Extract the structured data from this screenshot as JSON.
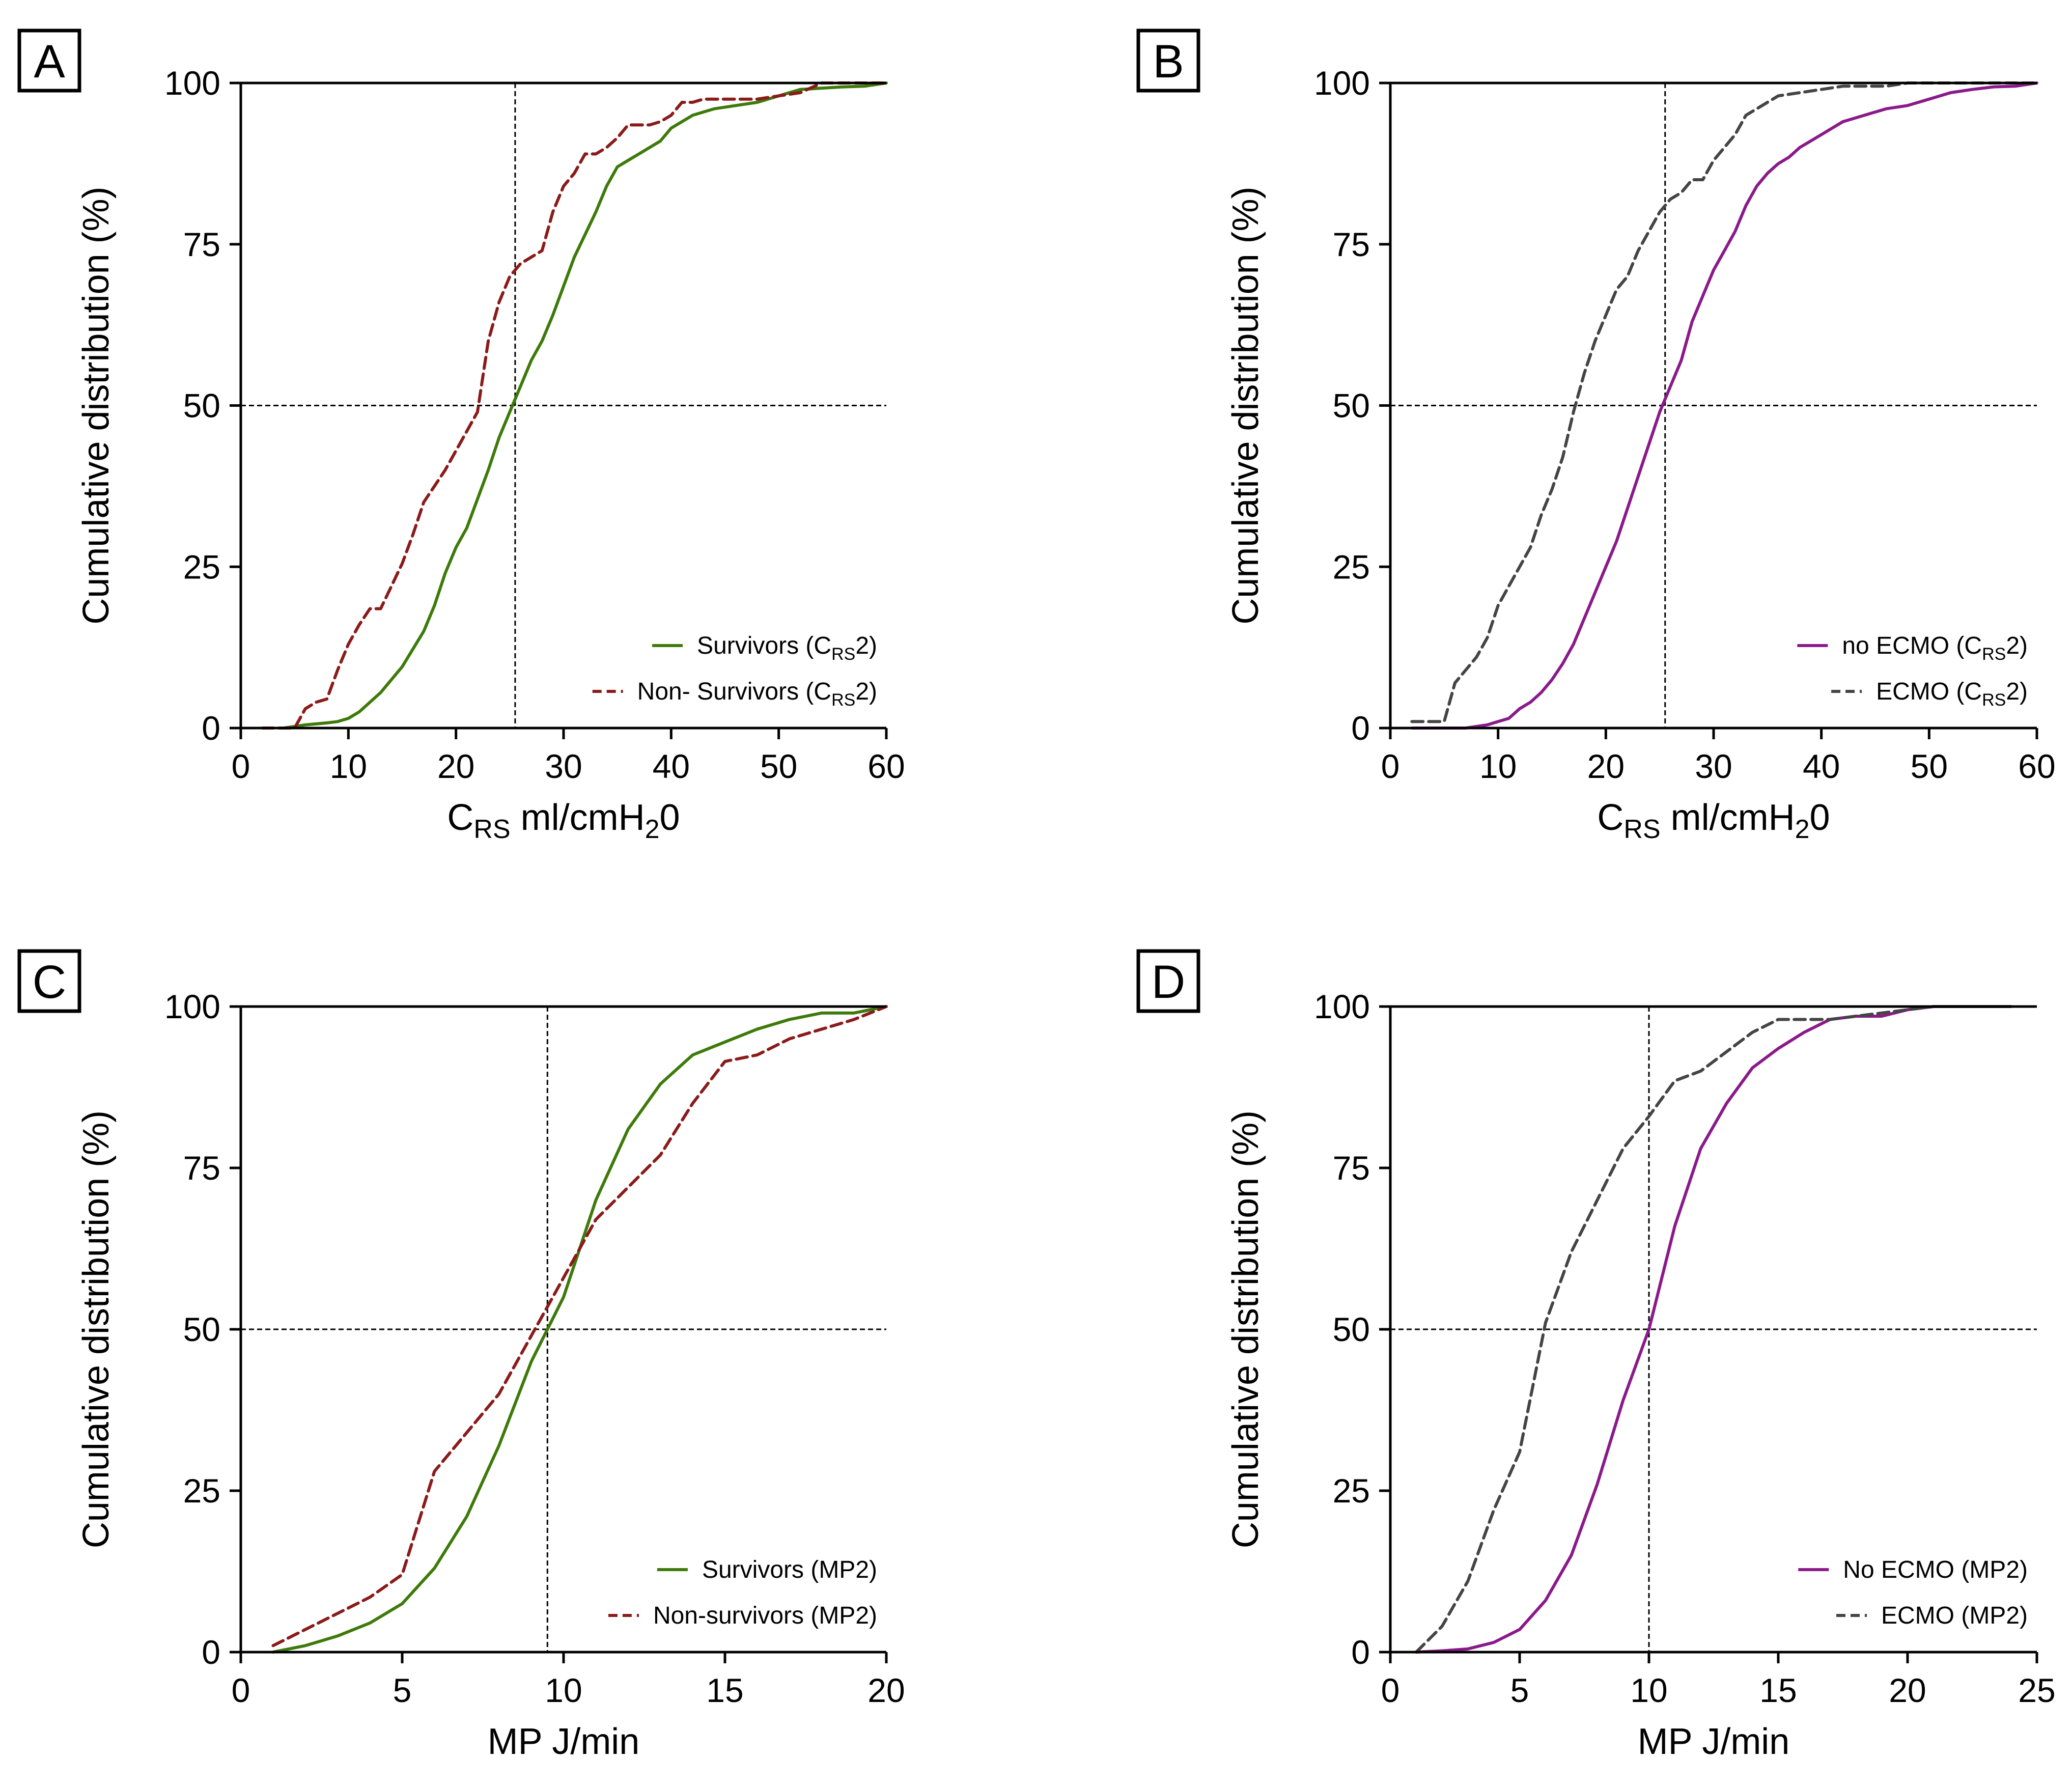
{
  "chart_data": [
    {
      "type": "line",
      "panel_label": "A",
      "xlabel_main": "C",
      "xlabel_sub": "RS",
      "xlabel_rest": " ml/cmH",
      "xlabel_sub2": "2",
      "xlabel_end": "0",
      "ylabel": "Cumulative distribution (%)",
      "xlim": [
        0,
        60
      ],
      "ylim": [
        0,
        100
      ],
      "xticks": [
        0,
        10,
        20,
        30,
        40,
        50,
        60
      ],
      "yticks": [
        0,
        25,
        50,
        75,
        100
      ],
      "ref_x": 25.5,
      "ref_y": 50,
      "legend_position": "bottom-right",
      "series": [
        {
          "name": "Survivors",
          "label_main": "Survivors (C",
          "label_sub": "RS",
          "label_end": "2)",
          "color": "#3d7a0a",
          "dash": "solid",
          "x": [
            4,
            6,
            8,
            9,
            10,
            11,
            13,
            15,
            17,
            18,
            19,
            20,
            21,
            23,
            24,
            25,
            26,
            27,
            28,
            29,
            31,
            33,
            34,
            35,
            36,
            37,
            38,
            39,
            40,
            42,
            44,
            46,
            48,
            50,
            52,
            54,
            56,
            58,
            60
          ],
          "y": [
            0,
            0.5,
            0.8,
            1,
            1.5,
            2.5,
            5.5,
            9.5,
            15,
            19,
            24,
            28,
            31,
            40,
            45,
            49,
            53,
            57,
            60,
            64,
            73,
            80,
            84,
            87,
            88,
            89,
            90,
            91,
            93,
            95,
            96,
            96.5,
            97,
            98,
            99,
            99.2,
            99.4,
            99.5,
            100
          ]
        },
        {
          "name": "Non-Survivors",
          "label_main": "Non- Survivors (C",
          "label_sub": "RS",
          "label_end": "2)",
          "color": "#8b1a1a",
          "dash": "dashed",
          "x": [
            2,
            5,
            6,
            7,
            8,
            9,
            10,
            11,
            12,
            13,
            14,
            15,
            16,
            17,
            18,
            19,
            20,
            21,
            22,
            23,
            24,
            25,
            26,
            27,
            28,
            29,
            30,
            31,
            32,
            33,
            34,
            35,
            36,
            37,
            38,
            39,
            40,
            41,
            42,
            43,
            44,
            45,
            46,
            48,
            50,
            52,
            54,
            56,
            60
          ],
          "y": [
            0,
            0,
            3,
            4,
            4.5,
            9,
            13,
            16,
            18.5,
            18.5,
            22,
            25.5,
            30,
            35,
            37.5,
            40,
            43,
            46,
            49,
            60,
            66,
            70,
            72,
            73,
            74,
            80,
            84,
            86,
            89,
            89,
            90,
            91.5,
            93.5,
            93.5,
            93.5,
            94,
            95,
            97,
            97,
            97.5,
            97.5,
            97.5,
            97.5,
            97.5,
            98,
            98.5,
            100,
            100,
            100
          ]
        }
      ]
    },
    {
      "type": "line",
      "panel_label": "B",
      "xlabel_main": "C",
      "xlabel_sub": "RS",
      "xlabel_rest": " ml/cmH",
      "xlabel_sub2": "2",
      "xlabel_end": "0",
      "ylabel": "Cumulative distribution (%)",
      "xlim": [
        0,
        60
      ],
      "ylim": [
        0,
        100
      ],
      "xticks": [
        0,
        10,
        20,
        30,
        40,
        50,
        60
      ],
      "yticks": [
        0,
        25,
        50,
        75,
        100
      ],
      "ref_x": 25.5,
      "ref_y": 50,
      "legend_position": "bottom-right",
      "series": [
        {
          "name": "no ECMO",
          "label_main": "no ECMO (C",
          "label_sub": "RS",
          "label_end": "2)",
          "color": "#8a1a8a",
          "dash": "solid",
          "x": [
            2,
            7,
            9,
            10,
            11,
            12,
            13,
            14,
            15,
            16,
            17,
            18,
            19,
            20,
            21,
            22,
            23,
            24,
            25,
            26,
            27,
            28,
            29,
            30,
            31,
            32,
            33,
            34,
            35,
            36,
            37,
            38,
            40,
            42,
            44,
            46,
            48,
            50,
            52,
            54,
            56,
            58,
            60
          ],
          "y": [
            0,
            0,
            0.5,
            1,
            1.5,
            3,
            4,
            5.5,
            7.5,
            10,
            13,
            17,
            21,
            25,
            29,
            34,
            39,
            44,
            49,
            53,
            57,
            63,
            67,
            71,
            74,
            77,
            81,
            84,
            86,
            87.5,
            88.5,
            90,
            92,
            94,
            95,
            96,
            96.5,
            97.5,
            98.5,
            99,
            99.4,
            99.5,
            100
          ]
        },
        {
          "name": "ECMO",
          "label_main": "ECMO (C",
          "label_sub": "RS",
          "label_end": "2)",
          "color": "#444444",
          "dash": "dashed",
          "x": [
            2,
            4,
            5,
            6,
            7,
            8,
            9,
            10,
            11,
            12,
            13,
            14,
            15,
            16,
            17,
            18,
            19,
            20,
            21,
            22,
            23,
            24,
            25,
            26,
            27,
            28,
            29,
            30,
            31,
            32,
            33,
            34,
            35,
            36,
            38,
            40,
            42,
            44,
            46,
            48,
            50,
            60
          ],
          "y": [
            1,
            1,
            1,
            7,
            9,
            11,
            14,
            19,
            22,
            25,
            28,
            33,
            37,
            42,
            49,
            55,
            60,
            64,
            68,
            70,
            74,
            77,
            80,
            82,
            83,
            85,
            85,
            88,
            90,
            92,
            95,
            96,
            97,
            98,
            98.5,
            99,
            99.5,
            99.5,
            99.5,
            100,
            100,
            100
          ]
        }
      ]
    },
    {
      "type": "line",
      "panel_label": "C",
      "xlabel_main": "MP J/min",
      "ylabel": "Cumulative distribution (%)",
      "xlim": [
        0,
        20
      ],
      "ylim": [
        0,
        100
      ],
      "xticks": [
        0,
        5,
        10,
        15,
        20
      ],
      "yticks": [
        0,
        25,
        50,
        75,
        100
      ],
      "ref_x": 9.5,
      "ref_y": 50,
      "legend_position": "bottom-right",
      "series": [
        {
          "name": "Survivors",
          "label_main": "Survivors (MP2)",
          "color": "#3d7a0a",
          "dash": "solid",
          "x": [
            1,
            2,
            3,
            4,
            5,
            6,
            7,
            8,
            9,
            10,
            11,
            12,
            13,
            14,
            15,
            16,
            17,
            18,
            19,
            20
          ],
          "y": [
            0,
            1,
            2.5,
            4.5,
            7.5,
            13,
            21,
            32,
            45,
            55,
            70,
            81,
            88,
            92.5,
            94.5,
            96.5,
            98,
            99,
            99,
            100
          ]
        },
        {
          "name": "Non-survivors",
          "label_main": "Non-survivors (MP2)",
          "color": "#8b1a1a",
          "dash": "dashed",
          "x": [
            1,
            2,
            3,
            4,
            5,
            6,
            7,
            8,
            9,
            10,
            11,
            12,
            13,
            14,
            15,
            16,
            17,
            18,
            19,
            20
          ],
          "y": [
            1,
            3.5,
            6,
            8.5,
            12,
            28,
            34,
            40,
            49,
            58,
            67,
            72,
            77,
            85,
            91.5,
            92.5,
            95,
            96.5,
            98,
            100
          ]
        }
      ]
    },
    {
      "type": "line",
      "panel_label": "D",
      "xlabel_main": "MP J/min",
      "ylabel": "Cumulative distribution (%)",
      "xlim": [
        0,
        25
      ],
      "ylim": [
        0,
        100
      ],
      "xticks": [
        0,
        5,
        10,
        15,
        20,
        25
      ],
      "yticks": [
        0,
        25,
        50,
        75,
        100
      ],
      "ref_x": 10,
      "ref_y": 50,
      "legend_position": "bottom-right",
      "series": [
        {
          "name": "No ECMO",
          "label_main": "No ECMO (MP2)",
          "color": "#8a1a8a",
          "dash": "solid",
          "x": [
            1,
            2,
            3,
            4,
            5,
            6,
            7,
            8,
            9,
            10,
            11,
            12,
            13,
            14,
            15,
            16,
            17,
            18,
            19,
            20,
            21,
            22,
            23,
            24
          ],
          "y": [
            0,
            0.2,
            0.5,
            1.5,
            3.5,
            8,
            15,
            26,
            39,
            50,
            66,
            78,
            85,
            90.5,
            93.5,
            96,
            98,
            98.5,
            98.5,
            99.5,
            100,
            100,
            100,
            100
          ]
        },
        {
          "name": "ECMO",
          "label_main": "ECMO (MP2)",
          "color": "#444444",
          "dash": "dashed",
          "x": [
            1,
            2,
            3,
            4,
            5,
            6,
            7,
            8,
            9,
            10,
            11,
            12,
            13,
            14,
            15,
            16,
            17,
            18,
            19,
            20,
            21,
            22,
            23,
            24
          ],
          "y": [
            0,
            4,
            11,
            22,
            31,
            51,
            62,
            70,
            78,
            83,
            88.5,
            90,
            93,
            96,
            98,
            98,
            98,
            98.5,
            99,
            99.5,
            100,
            100,
            100,
            100
          ]
        }
      ]
    }
  ]
}
